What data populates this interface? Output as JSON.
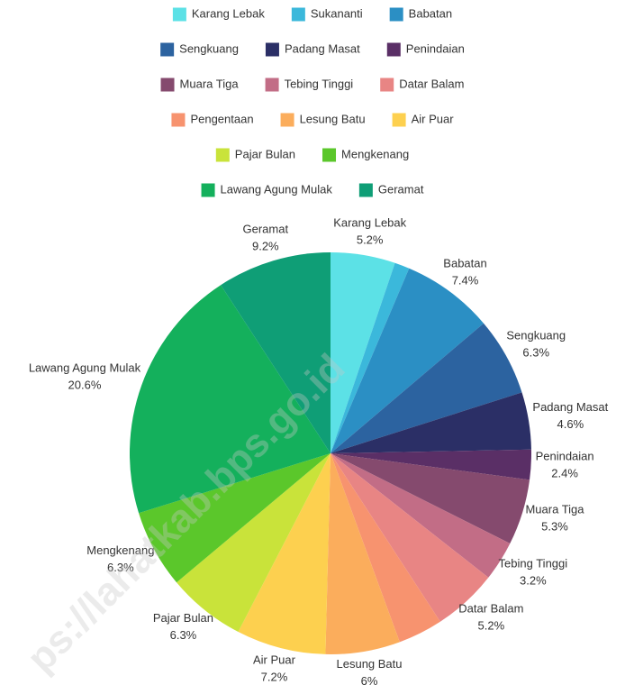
{
  "chart_data": {
    "type": "pie",
    "categories": [
      "Karang Lebak",
      "Sukananti",
      "Babatan",
      "Sengkuang",
      "Padang Masat",
      "Penindaian",
      "Muara Tiga",
      "Tebing Tinggi",
      "Datar Balam",
      "Pengentaan",
      "Lesung Batu",
      "Air Puar",
      "Pajar Bulan",
      "Mengkenang",
      "Lawang Agung Mulak",
      "Geramat"
    ],
    "values": [
      5.2,
      1.2,
      7.4,
      6.3,
      4.6,
      2.4,
      5.3,
      3.2,
      5.2,
      3.6,
      6,
      7.2,
      6.3,
      6.3,
      20.6,
      9.2
    ],
    "value_labels": [
      "5.2%",
      null,
      "7.4%",
      "6.3%",
      "4.6%",
      "2.4%",
      "5.3%",
      "3.2%",
      "5.2%",
      null,
      "6%",
      "7.2%",
      "6.3%",
      "6.3%",
      "20.6%",
      "9.2%"
    ],
    "colors": [
      "#5ce1e6",
      "#3bb8db",
      "#2b8fc4",
      "#2c63a0",
      "#2b2f66",
      "#5a2f66",
      "#854a6e",
      "#c26d86",
      "#e88584",
      "#f7936f",
      "#fbad5c",
      "#fdd04f",
      "#c9e33a",
      "#5bc72b",
      "#14b05c",
      "#0f9e76"
    ],
    "watermark": "ps://lahatkab.bps.go.id"
  }
}
